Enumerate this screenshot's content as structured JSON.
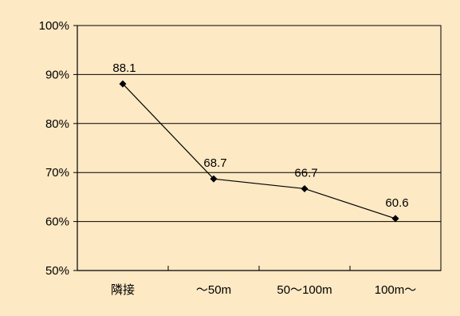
{
  "chart_data": {
    "type": "line",
    "categories": [
      "隣接",
      "～50m",
      "50～100m",
      "100m～"
    ],
    "series": [
      {
        "values": [
          88.1,
          68.7,
          66.7,
          60.6
        ]
      }
    ],
    "data_labels": [
      "88.1",
      "68.7",
      "66.7",
      "60.6"
    ],
    "y_ticks": [
      "50%",
      "60%",
      "70%",
      "80%",
      "90%",
      "100%"
    ],
    "ylim": [
      50,
      100
    ],
    "grid": true,
    "legend": "none",
    "colors": {
      "background": "#fde9c4",
      "plot_background": "#fde9c4",
      "line": "#000000",
      "grid": "#000000"
    }
  }
}
